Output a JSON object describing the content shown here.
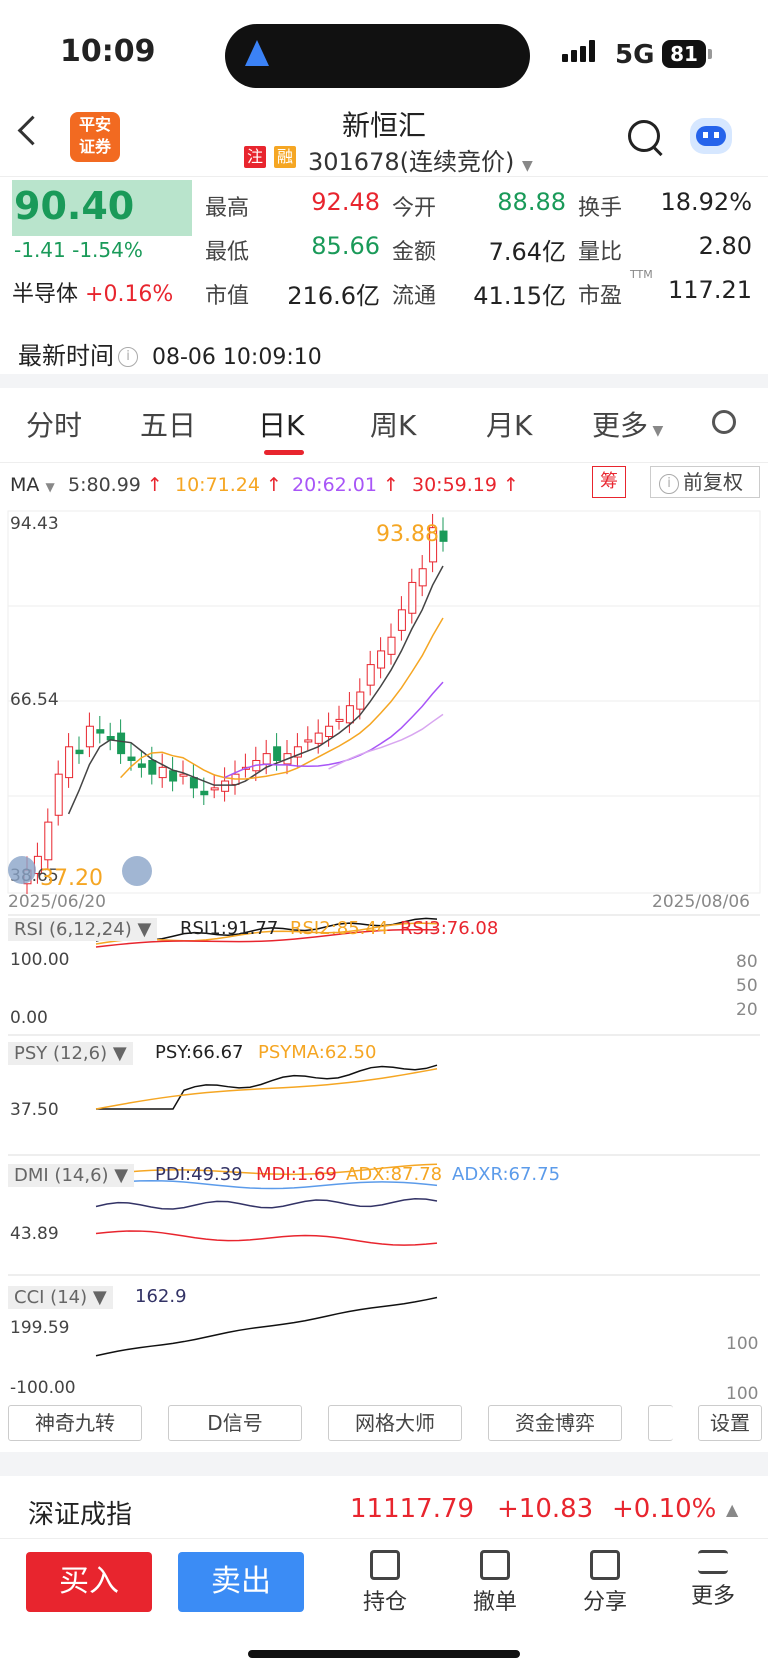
{
  "status": {
    "time": "10:09",
    "network": "5G",
    "battery": "81"
  },
  "header": {
    "broker_logo": "平安\n证券",
    "stock_name": "新恒汇",
    "tag_zhu": "注",
    "tag_rong": "融",
    "code_status": "301678(连续竞价)"
  },
  "quote": {
    "price": "90.40",
    "change": "-1.41 -1.54%",
    "sector": "半导体",
    "sector_change": "+0.16%",
    "high_label": "最高",
    "high": "92.48",
    "open_label": "今开",
    "open": "88.88",
    "turnover_label": "换手",
    "turnover": "18.92%",
    "low_label": "最低",
    "low": "85.66",
    "amount_label": "金额",
    "amount": "7.64亿",
    "vol_ratio_label": "量比",
    "vol_ratio": "2.80",
    "mcap_label": "市值",
    "mcap": "216.6亿",
    "float_label": "流通",
    "float": "41.15亿",
    "pe_label": "市盈",
    "pe_sup": "TTM",
    "pe": "117.21",
    "time_label": "最新时间",
    "time": "08-06 10:09:10"
  },
  "tabs": [
    "分时",
    "五日",
    "日K",
    "周K",
    "月K",
    "更多"
  ],
  "ma": {
    "label": "MA",
    "ma5": "5:80.99",
    "ma10": "10:71.24",
    "ma20": "20:62.01",
    "ma30": "30:59.19",
    "chou": "筹",
    "fuquan": "前复权"
  },
  "kline": {
    "ymax": "94.43",
    "ymid": "66.54",
    "ymin": "38.65",
    "high_mark": "93.88",
    "low_mark": "37.20",
    "date_start": "2025/06/20",
    "date_end": "2025/08/06"
  },
  "rsi": {
    "label": "RSI (6,12,24)",
    "rsi1": "RSI1:91.77",
    "rsi2": "RSI2:85.44",
    "rsi3": "RSI3:76.08",
    "y_top": "100.00",
    "y_bot": "0.00",
    "r80": "80",
    "r50": "50",
    "r20": "20"
  },
  "psy": {
    "label": "PSY (12,6)",
    "psy": "PSY:66.67",
    "psyma": "PSYMA:62.50",
    "y": "37.50"
  },
  "dmi": {
    "label": "DMI (14,6)",
    "pdi": "PDI:49.39",
    "mdi": "MDI:1.69",
    "adx": "ADX:87.78",
    "adxr": "ADXR:67.75",
    "y": "43.89"
  },
  "cci": {
    "label": "CCI (14)",
    "val": "162.9",
    "y_top": "199.59",
    "y_bot": "-100.00",
    "r100": "100",
    "rm100": "100"
  },
  "features": [
    "神奇九转",
    "D信号",
    "网格大师",
    "资金博弈",
    "设置"
  ],
  "index": {
    "name": "深证成指",
    "value": "11117.79",
    "change": "+10.83",
    "pct": "+0.10%"
  },
  "bottom": {
    "buy": "买入",
    "sell": "卖出",
    "position": "持仓",
    "cancel": "撤单",
    "share": "分享",
    "more": "更多"
  },
  "colors": {
    "up": "#e8252e",
    "down": "#1a9a59",
    "ma5": "#444",
    "ma10": "#f5a623",
    "ma20": "#a855f7",
    "ma30": "#e8252e"
  }
}
